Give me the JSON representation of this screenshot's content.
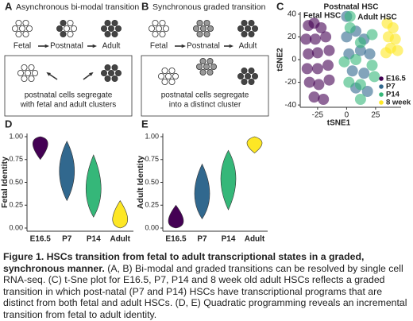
{
  "panels": {
    "a": {
      "label": "A",
      "title": "Asynchronous bi-modal transition",
      "stages": [
        "Fetal",
        "Postnatal",
        "Adult"
      ],
      "note": [
        "postnatal cells segregate",
        "with fetal and adult clusters"
      ]
    },
    "b": {
      "label": "B",
      "title": "Synchronous graded transition",
      "stages": [
        "Fetal",
        "Postnatal",
        "Adult"
      ],
      "note": [
        "postnatal cells segregate",
        "into a distinct cluster"
      ]
    }
  },
  "chart_data": [
    {
      "type": "scatter",
      "panel_label": "C",
      "x_label": "tSNE1",
      "y_label": "tSNE2",
      "annotations": [
        "Fetal HSC",
        "Postnatal HSC",
        "Adult HSC"
      ],
      "xlim": [
        -40,
        47
      ],
      "ylim": [
        -42,
        42
      ],
      "xticks": [
        -25,
        0,
        25
      ],
      "yticks": [
        40,
        20,
        0,
        -20,
        -40
      ],
      "series": [
        {
          "name": "E16.5",
          "color": "#440154",
          "x": [
            -33,
            -28,
            -22,
            -35,
            -27,
            -18,
            -33,
            -25,
            -15,
            -34,
            -25,
            -16,
            -32,
            -24,
            -15,
            -28,
            -20
          ],
          "y": [
            30,
            32,
            28,
            18,
            18,
            20,
            5,
            6,
            8,
            -8,
            -8,
            -5,
            -20,
            -22,
            -18,
            -33,
            -35
          ]
        },
        {
          "name": "P7",
          "color": "#31688e",
          "x": [
            0,
            8,
            15,
            2,
            12,
            20,
            5,
            15,
            8,
            18,
            0
          ],
          "y": [
            20,
            25,
            18,
            5,
            8,
            5,
            -10,
            -12,
            -25,
            -28,
            38
          ]
        },
        {
          "name": "P14",
          "color": "#35b779",
          "x": [
            3,
            12,
            22,
            -2,
            8,
            22,
            2,
            12,
            24,
            12,
            3
          ],
          "y": [
            28,
            15,
            22,
            -2,
            0,
            -5,
            -20,
            -22,
            -15,
            -35,
            38
          ]
        },
        {
          "name": "8 week",
          "color": "#fde725",
          "x": [
            35,
            40,
            36,
            42,
            38,
            34,
            44
          ],
          "y": [
            32,
            28,
            20,
            18,
            10,
            6,
            8
          ]
        }
      ]
    },
    {
      "type": "violin",
      "panel_label": "D",
      "y_label": "Fetal Identity",
      "categories": [
        "E16.5",
        "P7",
        "P14",
        "Adult"
      ],
      "colors": [
        "#440154",
        "#31688e",
        "#35b779",
        "#fde725"
      ],
      "values": [
        0.97,
        0.62,
        0.4,
        0.04
      ],
      "lo": [
        0.75,
        0.3,
        0.12,
        0
      ],
      "hi": [
        1,
        0.95,
        0.8,
        0.3
      ],
      "ylim": [
        0,
        1
      ],
      "yticks": [
        {
          "value": 0,
          "label": "0.00"
        },
        {
          "value": 0.25,
          "label": "0.25"
        },
        {
          "value": 0.5,
          "label": "0.50"
        },
        {
          "value": 0.75,
          "label": "0.75"
        },
        {
          "value": 1,
          "label": "1.00"
        }
      ]
    },
    {
      "type": "violin",
      "panel_label": "E",
      "y_label": "Adult Identity",
      "categories": [
        "E16.5",
        "P7",
        "P14",
        "Adult"
      ],
      "colors": [
        "#440154",
        "#31688e",
        "#35b779",
        "#fde725"
      ],
      "values": [
        0.03,
        0.35,
        0.55,
        0.95
      ],
      "lo": [
        0,
        0.1,
        0.2,
        0.82
      ],
      "hi": [
        0.25,
        0.7,
        0.85,
        1
      ],
      "ylim": [
        0,
        1
      ],
      "yticks": [
        {
          "value": 0,
          "label": "0.00"
        },
        {
          "value": 0.25,
          "label": "0.25"
        },
        {
          "value": 0.5,
          "label": "0.50"
        },
        {
          "value": 0.75,
          "label": "0.75"
        },
        {
          "value": 1,
          "label": "1.00"
        }
      ]
    }
  ],
  "caption": {
    "title": "Figure 1. HSCs transition from fetal to adult transcriptional states in a graded, synchronous manner.",
    "body": "(A, B) Bi-modal and graded transitions can be resolved by single cell RNA-seq. (C) t-Sne plot for E16.5, P7, P14 and 8 week old adult HSCs reflects a graded transition in which post-natal (P7 and P14) HSCs have transcriptional programs that are distinct from both fetal and adult HSCs. (D, E) Quadratic programming reveals an incremental transition from fetal to adult identity."
  }
}
